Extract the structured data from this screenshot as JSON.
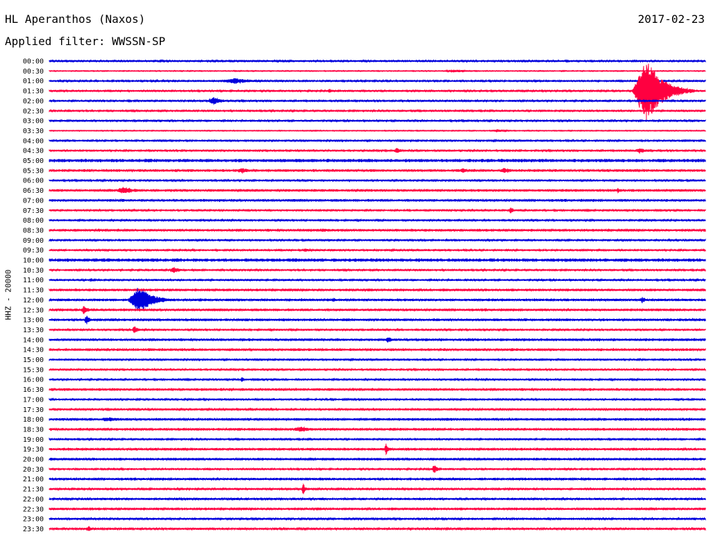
{
  "header": {
    "station": "HL Aperanthos (Naxos)",
    "date": "2017-02-23",
    "filter": "Applied filter: WWSSN-SP"
  },
  "channel_label": "HHZ - 20000",
  "colors": {
    "trace_a": "#0000dd",
    "trace_b": "#ff0040"
  },
  "chart_data": {
    "type": "line",
    "title": "",
    "xlabel": "",
    "ylabel": "HHZ - 20000",
    "rows": [
      "00:00",
      "00:30",
      "01:00",
      "01:30",
      "02:00",
      "02:30",
      "03:00",
      "03:30",
      "04:00",
      "04:30",
      "05:00",
      "05:30",
      "06:00",
      "06:30",
      "07:00",
      "07:30",
      "08:00",
      "08:30",
      "09:00",
      "09:30",
      "10:00",
      "10:30",
      "11:00",
      "11:30",
      "12:00",
      "12:30",
      "13:00",
      "13:30",
      "14:00",
      "14:30",
      "15:00",
      "15:30",
      "16:00",
      "16:30",
      "17:00",
      "17:30",
      "18:00",
      "18:30",
      "19:00",
      "19:30",
      "20:00",
      "20:30",
      "21:00",
      "21:30",
      "22:00",
      "22:30",
      "23:00",
      "23:30"
    ],
    "row_colors": [
      "blue",
      "red"
    ],
    "row_duration_min": 30,
    "baseline_noise": [
      1,
      0.6,
      1,
      1,
      1,
      1,
      1,
      0.6,
      1,
      1,
      2,
      1.5,
      1,
      1.5,
      1.5,
      1,
      1,
      1.5,
      1,
      1,
      2,
      1,
      1,
      1.5,
      1.5,
      1.5,
      1.5,
      1,
      1.5,
      1.5,
      1,
      1,
      1,
      1.5,
      1,
      1.2,
      1.5,
      1.5,
      1,
      1.5,
      1.5,
      1,
      1.5,
      1.2,
      1.2,
      1.5,
      1.2,
      1.2
    ],
    "events": [
      {
        "row": "00:30",
        "minute": 18.5,
        "amplitude": 2,
        "duration": 2
      },
      {
        "row": "01:00",
        "minute": 8.5,
        "amplitude": 4,
        "duration": 2.5
      },
      {
        "row": "01:30",
        "minute": 12.8,
        "amplitude": 3,
        "duration": 0.4
      },
      {
        "row": "01:30",
        "minute": 27.3,
        "amplitude": 47,
        "duration": 2.2
      },
      {
        "row": "02:00",
        "minute": 7.5,
        "amplitude": 6,
        "duration": 1
      },
      {
        "row": "02:00",
        "minute": 26.9,
        "amplitude": 2,
        "duration": 0.5
      },
      {
        "row": "02:30",
        "minute": 0.9,
        "amplitude": 2,
        "duration": 0.4
      },
      {
        "row": "03:30",
        "minute": 20.5,
        "amplitude": 2,
        "duration": 1.5
      },
      {
        "row": "04:30",
        "minute": 15.9,
        "amplitude": 4,
        "duration": 0.6
      },
      {
        "row": "04:30",
        "minute": 27.0,
        "amplitude": 4,
        "duration": 1
      },
      {
        "row": "05:30",
        "minute": 8.8,
        "amplitude": 4,
        "duration": 1
      },
      {
        "row": "05:30",
        "minute": 18.9,
        "amplitude": 4,
        "duration": 0.5
      },
      {
        "row": "05:30",
        "minute": 20.8,
        "amplitude": 4,
        "duration": 1
      },
      {
        "row": "06:30",
        "minute": 3.4,
        "amplitude": 5,
        "duration": 1.5
      },
      {
        "row": "06:30",
        "minute": 26.0,
        "amplitude": 4,
        "duration": 0.6
      },
      {
        "row": "07:30",
        "minute": 21.1,
        "amplitude": 6,
        "duration": 0.3
      },
      {
        "row": "08:30",
        "minute": 12.5,
        "amplitude": 2,
        "duration": 3
      },
      {
        "row": "09:30",
        "minute": 11.7,
        "amplitude": 3,
        "duration": 0.6
      },
      {
        "row": "10:30",
        "minute": 5.7,
        "amplitude": 4,
        "duration": 1
      },
      {
        "row": "11:00",
        "minute": 1.9,
        "amplitude": 3,
        "duration": 0.4
      },
      {
        "row": "12:00",
        "minute": 4.1,
        "amplitude": 20,
        "duration": 1.8
      },
      {
        "row": "12:00",
        "minute": 13.0,
        "amplitude": 3,
        "duration": 0.4
      },
      {
        "row": "12:00",
        "minute": 27.1,
        "amplitude": 5,
        "duration": 0.5
      },
      {
        "row": "12:30",
        "minute": 1.6,
        "amplitude": 8,
        "duration": 0.5
      },
      {
        "row": "13:00",
        "minute": 1.7,
        "amplitude": 8,
        "duration": 0.4
      },
      {
        "row": "13:30",
        "minute": 3.9,
        "amplitude": 6,
        "duration": 0.4
      },
      {
        "row": "14:00",
        "minute": 15.5,
        "amplitude": 5,
        "duration": 0.4
      },
      {
        "row": "16:00",
        "minute": 8.8,
        "amplitude": 5,
        "duration": 0.2
      },
      {
        "row": "18:00",
        "minute": 2.7,
        "amplitude": 3,
        "duration": 2.5
      },
      {
        "row": "18:30",
        "minute": 11.5,
        "amplitude": 4,
        "duration": 1.5
      },
      {
        "row": "19:30",
        "minute": 15.4,
        "amplitude": 9,
        "duration": 0.3
      },
      {
        "row": "20:30",
        "minute": 17.6,
        "amplitude": 9,
        "duration": 0.3
      },
      {
        "row": "21:30",
        "minute": 11.6,
        "amplitude": 9,
        "duration": 0.3
      },
      {
        "row": "23:30",
        "minute": 1.8,
        "amplitude": 4,
        "duration": 0.6
      }
    ]
  }
}
